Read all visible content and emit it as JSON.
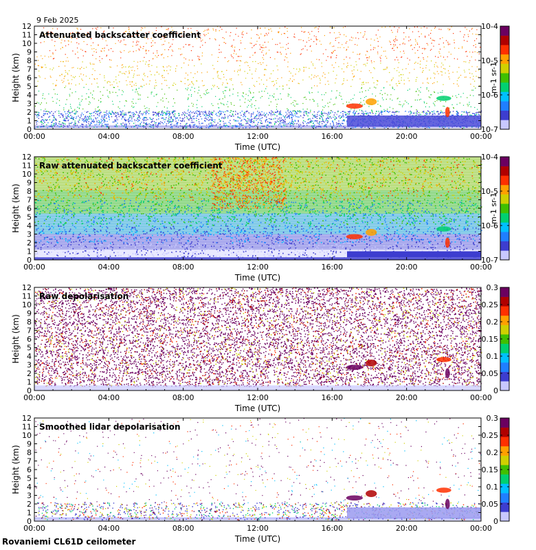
{
  "date": "9 Feb 2025",
  "site": "Rovaniemi CL61D ceilometer",
  "xlabel": "Time (UTC)",
  "ylabel": "Height (km)",
  "colors": {
    "colormap": [
      "#c8c8ff",
      "#3d3dcf",
      "#1f7fff",
      "#00c0ff",
      "#00d070",
      "#40c000",
      "#d0d000",
      "#ffa000",
      "#ff3000",
      "#b00000",
      "#6b0060"
    ]
  },
  "chart_data": [
    {
      "type": "heatmap",
      "title": "Attenuated backscatter coefficient",
      "x_ticks": [
        "00:00",
        "04:00",
        "08:00",
        "12:00",
        "16:00",
        "20:00",
        "00:00"
      ],
      "xlim_hours": [
        0,
        24
      ],
      "y_ticks": [
        0,
        1,
        2,
        3,
        4,
        5,
        6,
        7,
        8,
        9,
        10,
        11,
        12
      ],
      "ylim_km": [
        0,
        12
      ],
      "colorbar": {
        "scale": "log",
        "range": [
          1e-07,
          0.0001
        ],
        "ticks": [
          "10-7",
          "10-6",
          "10-5",
          "10-4"
        ],
        "unit": "m-1 sr-1"
      },
      "pattern": "sparse"
    },
    {
      "type": "heatmap",
      "title": "Raw attenuated backscatter coefficient",
      "x_ticks": [
        "00:00",
        "04:00",
        "08:00",
        "12:00",
        "16:00",
        "20:00",
        "00:00"
      ],
      "xlim_hours": [
        0,
        24
      ],
      "y_ticks": [
        0,
        1,
        2,
        3,
        4,
        5,
        6,
        7,
        8,
        9,
        10,
        11,
        12
      ],
      "ylim_km": [
        0,
        12
      ],
      "colorbar": {
        "scale": "log",
        "range": [
          1e-07,
          0.0001
        ],
        "ticks": [
          "10-7",
          "10-6",
          "10-5",
          "10-4"
        ],
        "unit": "m-1 sr-1"
      },
      "pattern": "raw"
    },
    {
      "type": "heatmap",
      "title": "Raw depolarisation",
      "x_ticks": [
        "00:00",
        "04:00",
        "08:00",
        "12:00",
        "16:00",
        "20:00",
        "00:00"
      ],
      "xlim_hours": [
        0,
        24
      ],
      "y_ticks": [
        0,
        1,
        2,
        3,
        4,
        5,
        6,
        7,
        8,
        9,
        10,
        11,
        12
      ],
      "ylim_km": [
        0,
        12
      ],
      "colorbar": {
        "scale": "linear",
        "range": [
          0,
          0.3
        ],
        "ticks": [
          "0",
          "0.05",
          "0.1",
          "0.15",
          "0.2",
          "0.25",
          "0.3"
        ],
        "unit": ""
      },
      "pattern": "depol"
    },
    {
      "type": "heatmap",
      "title": "Smoothed lidar depolarisation",
      "x_ticks": [
        "00:00",
        "04:00",
        "08:00",
        "12:00",
        "16:00",
        "20:00",
        "00:00"
      ],
      "xlim_hours": [
        0,
        24
      ],
      "y_ticks": [
        0,
        1,
        2,
        3,
        4,
        5,
        6,
        7,
        8,
        9,
        10,
        11,
        12
      ],
      "ylim_km": [
        0,
        12
      ],
      "colorbar": {
        "scale": "linear",
        "range": [
          0,
          0.3
        ],
        "ticks": [
          "0",
          "0.05",
          "0.1",
          "0.15",
          "0.2",
          "0.25",
          "0.3"
        ],
        "unit": ""
      },
      "pattern": "smoothdepol"
    }
  ]
}
